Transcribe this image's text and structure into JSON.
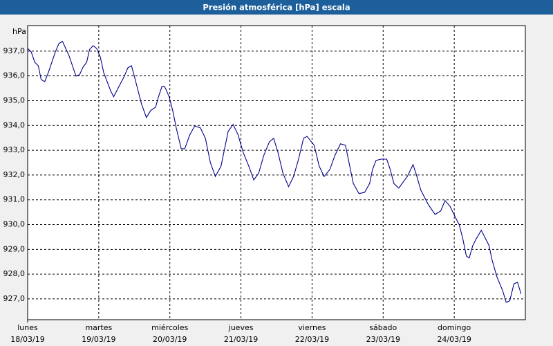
{
  "chart_data": {
    "type": "line",
    "title": "Presión atmosférica [hPa] escala",
    "y_unit": "hPa",
    "color": "#00008b",
    "grid": true,
    "xlim": [
      0,
      7
    ],
    "ylim": [
      926.16,
      938.03
    ],
    "xticks": [
      {
        "value": 0,
        "label": "lunes",
        "date": "18/03/19"
      },
      {
        "value": 1,
        "label": "martes",
        "date": "19/03/19"
      },
      {
        "value": 2,
        "label": "miércoles",
        "date": "20/03/19"
      },
      {
        "value": 3,
        "label": "jueves",
        "date": "21/03/19"
      },
      {
        "value": 4,
        "label": "viernes",
        "date": "22/03/19"
      },
      {
        "value": 5,
        "label": "sábado",
        "date": "23/03/19"
      },
      {
        "value": 6,
        "label": "domingo",
        "date": "24/03/19"
      }
    ],
    "yticks": [
      {
        "value": 927,
        "label": "927,0"
      },
      {
        "value": 928,
        "label": "928,0"
      },
      {
        "value": 929,
        "label": "929,0"
      },
      {
        "value": 930,
        "label": "930,0"
      },
      {
        "value": 931,
        "label": "931,0"
      },
      {
        "value": 932,
        "label": "932,0"
      },
      {
        "value": 933,
        "label": "933,0"
      },
      {
        "value": 934,
        "label": "934,0"
      },
      {
        "value": 935,
        "label": "935,0"
      },
      {
        "value": 936,
        "label": "936,0"
      },
      {
        "value": 937,
        "label": "937,0"
      }
    ],
    "x": [
      0,
      0.05,
      0.1,
      0.15,
      0.19,
      0.24,
      0.29,
      0.39,
      0.44,
      0.49,
      0.58,
      0.68,
      0.73,
      0.78,
      0.83,
      0.87,
      0.92,
      0.97,
      1.02,
      1.07,
      1.17,
      1.21,
      1.26,
      1.36,
      1.41,
      1.46,
      1.5,
      1.55,
      1.6,
      1.67,
      1.73,
      1.8,
      1.84,
      1.89,
      1.92,
      1.94,
      1.99,
      2.04,
      2.09,
      2.16,
      2.21,
      2.28,
      2.35,
      2.43,
      2.5,
      2.57,
      2.64,
      2.72,
      2.82,
      2.89,
      2.96,
      3.03,
      3.11,
      3.18,
      3.25,
      3.32,
      3.4,
      3.46,
      3.52,
      3.59,
      3.67,
      3.74,
      3.81,
      3.88,
      3.93,
      4.03,
      4.1,
      4.17,
      4.25,
      4.32,
      4.4,
      4.47,
      4.51,
      4.58,
      4.66,
      4.74,
      4.81,
      4.85,
      4.9,
      4.97,
      5.05,
      5.1,
      5.15,
      5.22,
      5.29,
      5.34,
      5.42,
      5.46,
      5.53,
      5.63,
      5.73,
      5.81,
      5.87,
      5.94,
      6.02,
      6.07,
      6.12,
      6.17,
      6.21,
      6.26,
      6.31,
      6.38,
      6.44,
      6.49,
      6.53,
      6.6,
      6.68,
      6.73,
      6.78,
      6.84,
      6.89,
      6.94
    ],
    "values": [
      937.11,
      936.97,
      936.55,
      936.41,
      935.85,
      935.77,
      936.13,
      936.97,
      937.31,
      937.39,
      936.83,
      935.99,
      936.05,
      936.36,
      936.55,
      937.06,
      937.22,
      937.11,
      936.78,
      936.13,
      935.38,
      935.16,
      935.44,
      935.99,
      936.33,
      936.41,
      935.99,
      935.44,
      934.88,
      934.32,
      934.6,
      934.74,
      935.16,
      935.58,
      935.58,
      935.49,
      935.16,
      934.6,
      933.9,
      933.06,
      933.06,
      933.62,
      933.98,
      933.9,
      933.48,
      932.5,
      931.94,
      932.36,
      933.76,
      934.04,
      933.62,
      932.92,
      932.36,
      931.8,
      932.08,
      932.78,
      933.34,
      933.48,
      932.92,
      932.08,
      931.53,
      931.94,
      932.64,
      933.48,
      933.56,
      933.2,
      932.36,
      931.94,
      932.22,
      932.78,
      933.26,
      933.2,
      932.64,
      931.66,
      931.25,
      931.3,
      931.66,
      932.22,
      932.59,
      932.64,
      932.64,
      932.22,
      931.66,
      931.47,
      931.75,
      931.94,
      932.42,
      932.08,
      931.39,
      930.83,
      930.41,
      930.55,
      930.97,
      930.74,
      930.27,
      929.99,
      929.43,
      928.73,
      928.65,
      929.15,
      929.43,
      929.77,
      929.43,
      929.15,
      928.59,
      927.89,
      927.34,
      926.86,
      926.92,
      927.61,
      927.67,
      927.2
    ]
  }
}
